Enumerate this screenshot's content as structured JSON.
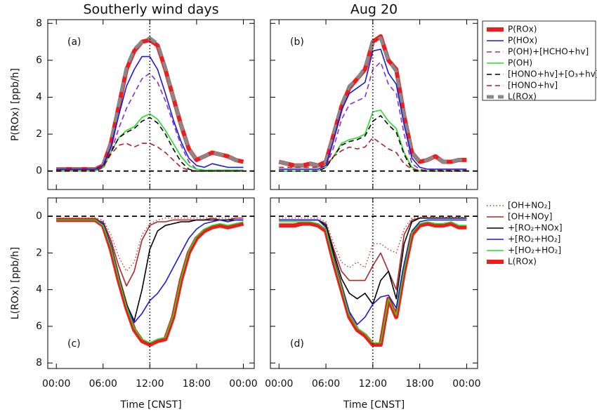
{
  "chart_data": [
    {
      "type": "line",
      "title": "Southerly wind days",
      "label": "(a)",
      "ylabel": "P(ROx) [ppb/h]",
      "x": [
        0,
        1,
        2,
        3,
        4,
        5,
        6,
        7,
        8,
        9,
        10,
        11,
        12,
        13,
        14,
        15,
        16,
        17,
        18,
        19,
        20,
        21,
        22,
        23,
        24
      ],
      "xlim": [
        -1.1,
        25.4
      ],
      "xticks": [
        0,
        6,
        12,
        18,
        24
      ],
      "ylim": [
        -1,
        8.2
      ],
      "yticks": [
        0,
        2,
        4,
        6,
        8
      ],
      "hline": 0,
      "vline": 12,
      "series": [
        {
          "color": "#ee1c1c",
          "width": 6,
          "dash": "solid",
          "values": [
            0.1,
            0.1,
            0.1,
            0.1,
            0.1,
            0.1,
            0.3,
            1.5,
            3.5,
            5.5,
            6.5,
            7.0,
            7.1,
            6.8,
            5.5,
            4.0,
            2.5,
            1.2,
            0.6,
            0.8,
            1.0,
            0.9,
            0.8,
            0.6,
            0.5
          ]
        },
        {
          "color": "#1a1adb",
          "width": 1.6,
          "dash": "solid",
          "values": [
            0.1,
            0.1,
            0.1,
            0.1,
            0.1,
            0.1,
            0.3,
            1.3,
            3.0,
            4.6,
            5.5,
            6.2,
            6.2,
            5.5,
            4.2,
            2.8,
            1.6,
            0.7,
            0.3,
            0.2,
            0.4,
            0.3,
            0.2,
            0.2,
            0.2
          ]
        },
        {
          "color": "#8a2be2",
          "width": 1.6,
          "dash": "dashed",
          "values": [
            0,
            0,
            0,
            0,
            0,
            0,
            0.2,
            1.0,
            2.3,
            3.4,
            4.2,
            5.0,
            5.3,
            4.8,
            3.8,
            2.6,
            1.4,
            0.5,
            0.1,
            0.05,
            0.05,
            0.05,
            0.05,
            0.05,
            0.05
          ]
        },
        {
          "color": "#22dd22",
          "width": 1.6,
          "dash": "solid",
          "values": [
            0,
            0,
            0,
            0,
            0,
            0,
            0.2,
            1.0,
            1.8,
            2.2,
            2.4,
            2.9,
            3.1,
            2.8,
            2.2,
            1.5,
            0.8,
            0.3,
            0.1,
            0.05,
            0.05,
            0.05,
            0.05,
            0.05,
            0.05
          ]
        },
        {
          "color": "#000000",
          "width": 1.6,
          "dash": "dashed",
          "values": [
            0,
            0,
            0,
            0,
            0,
            0,
            0.2,
            1.0,
            1.8,
            2.1,
            2.3,
            2.7,
            2.9,
            2.6,
            2.0,
            1.2,
            0.5,
            0.1,
            0,
            0,
            0,
            0,
            0,
            0,
            0
          ]
        },
        {
          "color": "#b22222",
          "width": 1.6,
          "dash": "dashed",
          "values": [
            0.05,
            0.05,
            0.05,
            0.05,
            0.05,
            0.05,
            0.2,
            0.9,
            1.4,
            1.5,
            1.3,
            1.5,
            1.5,
            1.3,
            1.0,
            0.6,
            0.2,
            0.05,
            0,
            0,
            0,
            0,
            0,
            0,
            0
          ]
        },
        {
          "color": "#888888",
          "width": 5,
          "dash": "dashed",
          "values": [
            0.1,
            0.1,
            0.1,
            0.1,
            0.1,
            0.1,
            0.3,
            1.5,
            3.6,
            5.6,
            6.6,
            7.0,
            7.2,
            6.9,
            5.6,
            4.0,
            2.5,
            1.2,
            0.6,
            0.8,
            1.0,
            0.9,
            0.8,
            0.6,
            0.5
          ]
        }
      ]
    },
    {
      "type": "line",
      "title": "Aug 20",
      "label": "(b)",
      "x": [
        0,
        1,
        2,
        3,
        4,
        5,
        6,
        7,
        8,
        9,
        10,
        11,
        12,
        13,
        14,
        15,
        16,
        17,
        18,
        19,
        20,
        21,
        22,
        23,
        24
      ],
      "xlim": [
        -1.1,
        25.4
      ],
      "xticks": [
        0,
        6,
        12,
        18,
        24
      ],
      "ylim": [
        -1,
        8.2
      ],
      "yticks": [
        0,
        2,
        4,
        6,
        8
      ],
      "ytick_labels": false,
      "hline": 0,
      "vline": 12,
      "legend_box": true,
      "series": [
        {
          "name": "P(ROx)",
          "color": "#ee1c1c",
          "width": 6,
          "dash": "solid",
          "values": [
            0.5,
            0.4,
            0.3,
            0.3,
            0.4,
            0.3,
            0.5,
            2.0,
            3.5,
            4.5,
            5.0,
            5.5,
            7.0,
            7.3,
            6.0,
            5.5,
            3.0,
            1.0,
            0.5,
            0.6,
            0.8,
            0.5,
            0.5,
            0.6,
            0.6
          ]
        },
        {
          "name": "P(HOx)",
          "color": "#1a1adb",
          "width": 1.6,
          "dash": "solid",
          "values": [
            0.1,
            0.1,
            0.1,
            0.1,
            0.1,
            0.1,
            0.3,
            1.7,
            3.3,
            4.2,
            4.5,
            4.8,
            6.5,
            6.6,
            5.3,
            4.7,
            2.5,
            0.7,
            0.2,
            0.1,
            0.1,
            0.1,
            0.1,
            0.1,
            0.1
          ]
        },
        {
          "name": "P(OH)+[HCHO+hv]",
          "color": "#8a2be2",
          "width": 1.6,
          "dash": "dashed",
          "values": [
            0,
            0,
            0,
            0,
            0,
            0,
            0.2,
            1.3,
            2.8,
            3.6,
            3.8,
            4.0,
            5.5,
            5.9,
            4.7,
            4.2,
            2.0,
            0.4,
            0.1,
            0,
            0,
            0,
            0,
            0,
            0
          ]
        },
        {
          "name": "P(OH)",
          "color": "#22dd22",
          "width": 1.6,
          "dash": "solid",
          "values": [
            0,
            0,
            0,
            0,
            0,
            0,
            0.2,
            0.8,
            1.5,
            1.7,
            1.8,
            2.0,
            3.2,
            3.3,
            2.7,
            2.3,
            1.0,
            0.2,
            0,
            0,
            0,
            0,
            0,
            0,
            0
          ]
        },
        {
          "name": "[HONO+hv]+[O₃+hv]",
          "color": "#000000",
          "width": 1.6,
          "dash": "dashed",
          "values": [
            0,
            0,
            0,
            0,
            0,
            0,
            0.2,
            0.8,
            1.4,
            1.6,
            1.7,
            1.9,
            2.7,
            3.0,
            2.5,
            2.1,
            0.9,
            0.1,
            0,
            0,
            0,
            0,
            0,
            0,
            0
          ]
        },
        {
          "name": "[HONO+hv]",
          "color": "#b22222",
          "width": 1.6,
          "dash": "dashed",
          "values": [
            0.2,
            0.2,
            0.2,
            0.2,
            0.2,
            0.2,
            0.3,
            0.8,
            1.1,
            1.3,
            1.2,
            1.3,
            1.8,
            1.5,
            1.2,
            1.0,
            0.4,
            0.1,
            0.05,
            0.05,
            0.05,
            0.05,
            0.05,
            0.05,
            0.05
          ]
        },
        {
          "name": "L(ROx)",
          "color": "#888888",
          "width": 5,
          "dash": "dashed",
          "values": [
            0.5,
            0.4,
            0.3,
            0.3,
            0.4,
            0.3,
            0.5,
            2.0,
            3.6,
            4.6,
            5.0,
            5.6,
            7.0,
            7.2,
            6.0,
            5.4,
            3.0,
            1.0,
            0.5,
            0.6,
            0.8,
            0.5,
            0.5,
            0.6,
            0.6
          ]
        }
      ]
    },
    {
      "type": "line",
      "label": "(c)",
      "ylabel": "L(ROx) [ppb/h]",
      "xlabel": "Time [CNST]",
      "x": [
        0,
        1,
        2,
        3,
        4,
        5,
        6,
        7,
        8,
        9,
        10,
        11,
        12,
        13,
        14,
        15,
        16,
        17,
        18,
        19,
        20,
        21,
        22,
        23,
        24
      ],
      "xlim": [
        -1.1,
        25.4
      ],
      "xticks": [
        {
          "value": 0,
          "label": "00:00"
        },
        {
          "value": 6,
          "label": "06:00"
        },
        {
          "value": 12,
          "label": "12:00"
        },
        {
          "value": 18,
          "label": "18:00"
        },
        {
          "value": 24,
          "label": "00:00"
        }
      ],
      "ylim": [
        -1,
        8.3
      ],
      "y_inverted": true,
      "yticks": [
        0,
        2,
        4,
        6,
        8
      ],
      "hline": 0,
      "vline": 12,
      "series": [
        {
          "color": "#cc3333",
          "width": 1.4,
          "dash": "dotted",
          "values": [
            0.1,
            0.1,
            0.1,
            0.1,
            0.1,
            0.1,
            0.2,
            1.0,
            2.2,
            3.0,
            2.5,
            1.0,
            0.4,
            0.2,
            0.1,
            0.1,
            0.1,
            0.1,
            0.1,
            0.1,
            0.1,
            0.1,
            0.1,
            0.1,
            0.1
          ]
        },
        {
          "color": "#a52a2a",
          "width": 1.6,
          "dash": "solid",
          "values": [
            0.2,
            0.2,
            0.2,
            0.2,
            0.2,
            0.2,
            0.3,
            1.3,
            2.7,
            3.8,
            3.0,
            1.3,
            0.5,
            0.3,
            0.3,
            0.2,
            0.2,
            0.2,
            0.2,
            0.2,
            0.1,
            0.2,
            0.2,
            0.1,
            0.1
          ]
        },
        {
          "color": "#000000",
          "width": 1.6,
          "dash": "solid",
          "values": [
            0.2,
            0.2,
            0.2,
            0.2,
            0.2,
            0.2,
            0.4,
            1.6,
            3.3,
            4.8,
            5.7,
            4.0,
            1.8,
            0.8,
            0.5,
            0.4,
            0.3,
            0.3,
            0.2,
            0.2,
            0.2,
            0.2,
            0.2,
            0.2,
            0.2
          ]
        },
        {
          "color": "#1a1adb",
          "width": 1.6,
          "dash": "solid",
          "values": [
            0.2,
            0.2,
            0.2,
            0.2,
            0.2,
            0.2,
            0.4,
            1.6,
            3.3,
            4.9,
            5.8,
            5.3,
            4.6,
            4.2,
            3.6,
            2.8,
            2.0,
            1.2,
            0.7,
            0.4,
            0.3,
            0.2,
            0.3,
            0.2,
            0.2
          ]
        },
        {
          "color": "#22dd22",
          "width": 1.6,
          "dash": "solid",
          "values": [
            0.2,
            0.2,
            0.2,
            0.2,
            0.2,
            0.2,
            0.5,
            1.7,
            3.4,
            4.9,
            6.1,
            6.7,
            6.9,
            6.7,
            6.6,
            5.4,
            3.4,
            1.9,
            1.1,
            0.7,
            0.5,
            0.4,
            0.5,
            0.4,
            0.3
          ]
        },
        {
          "color": "#ee1c1c",
          "width": 6,
          "dash": "solid",
          "values": [
            0.2,
            0.2,
            0.2,
            0.2,
            0.2,
            0.2,
            0.5,
            1.8,
            3.5,
            5.0,
            6.2,
            6.8,
            7.0,
            6.8,
            6.7,
            5.5,
            3.5,
            2.0,
            1.2,
            0.8,
            0.6,
            0.5,
            0.6,
            0.5,
            0.4
          ]
        }
      ]
    },
    {
      "type": "line",
      "label": "(d)",
      "xlabel": "Time [CNST]",
      "x": [
        0,
        1,
        2,
        3,
        4,
        5,
        6,
        7,
        8,
        9,
        10,
        11,
        12,
        13,
        14,
        15,
        16,
        17,
        18,
        19,
        20,
        21,
        22,
        23,
        24
      ],
      "xlim": [
        -1.1,
        25.4
      ],
      "xticks": [
        {
          "value": 0,
          "label": "00:00"
        },
        {
          "value": 6,
          "label": "06:00"
        },
        {
          "value": 12,
          "label": "12:00"
        },
        {
          "value": 18,
          "label": "18:00"
        },
        {
          "value": 24,
          "label": "00:00"
        }
      ],
      "ylim": [
        -1,
        8.3
      ],
      "y_inverted": true,
      "yticks": [
        0,
        2,
        4,
        6,
        8
      ],
      "ytick_labels": false,
      "hline": 0,
      "vline": 12,
      "legend_box": false,
      "series": [
        {
          "name": "[OH+NO₂]",
          "color": "#cc3333",
          "width": 1.4,
          "dash": "dotted",
          "values": [
            0.1,
            0.1,
            0.1,
            0.1,
            0.1,
            0.1,
            0.3,
            1.5,
            2.5,
            2.8,
            2.5,
            2.8,
            1.5,
            1.5,
            1.8,
            2.0,
            0.7,
            0.1,
            0.05,
            0.05,
            0.05,
            0.05,
            0.05,
            0.05,
            0.05
          ]
        },
        {
          "name": "[OH+NOy]",
          "color": "#a52a2a",
          "width": 1.6,
          "dash": "solid",
          "values": [
            0.2,
            0.2,
            0.2,
            0.2,
            0.2,
            0.2,
            0.4,
            1.8,
            3.0,
            3.5,
            3.5,
            3.5,
            2.7,
            2.0,
            3.0,
            4.0,
            1.0,
            0.2,
            0.1,
            0.1,
            0.1,
            0.1,
            0.1,
            0.1,
            0.1
          ]
        },
        {
          "name": "+[RO₂+NOx]",
          "color": "#000000",
          "width": 1.6,
          "dash": "solid",
          "values": [
            0.2,
            0.2,
            0.2,
            0.2,
            0.2,
            0.2,
            0.5,
            2.0,
            3.4,
            4.2,
            4.5,
            4.2,
            4.8,
            3.5,
            3.0,
            4.5,
            1.5,
            0.3,
            0.1,
            0.1,
            0.1,
            0.1,
            0.1,
            0.1,
            0.1
          ]
        },
        {
          "name": "+[RO₂+HO₂]",
          "color": "#1a1adb",
          "width": 1.6,
          "dash": "solid",
          "values": [
            0.2,
            0.2,
            0.2,
            0.2,
            0.2,
            0.2,
            0.6,
            2.3,
            3.8,
            5.2,
            5.9,
            5.5,
            4.8,
            4.4,
            4.3,
            5.0,
            2.6,
            0.8,
            0.3,
            0.2,
            0.2,
            0.2,
            0.2,
            0.2,
            0.2
          ]
        },
        {
          "name": "+[HO₂+HO₂]",
          "color": "#22dd22",
          "width": 1.6,
          "dash": "solid",
          "values": [
            0.3,
            0.3,
            0.3,
            0.3,
            0.3,
            0.4,
            0.7,
            2.4,
            3.9,
            5.4,
            6.1,
            6.4,
            6.9,
            6.9,
            4.5,
            5.4,
            2.9,
            0.9,
            0.4,
            0.3,
            0.4,
            0.4,
            0.3,
            0.5,
            0.5
          ]
        },
        {
          "name": "L(ROx)",
          "color": "#ee1c1c",
          "width": 6,
          "dash": "solid",
          "values": [
            0.5,
            0.5,
            0.5,
            0.4,
            0.4,
            0.5,
            0.8,
            2.5,
            4.0,
            5.5,
            6.2,
            6.5,
            7.0,
            7.0,
            4.5,
            5.5,
            3.0,
            1.0,
            0.5,
            0.4,
            0.5,
            0.5,
            0.4,
            0.6,
            0.6
          ]
        }
      ]
    }
  ]
}
